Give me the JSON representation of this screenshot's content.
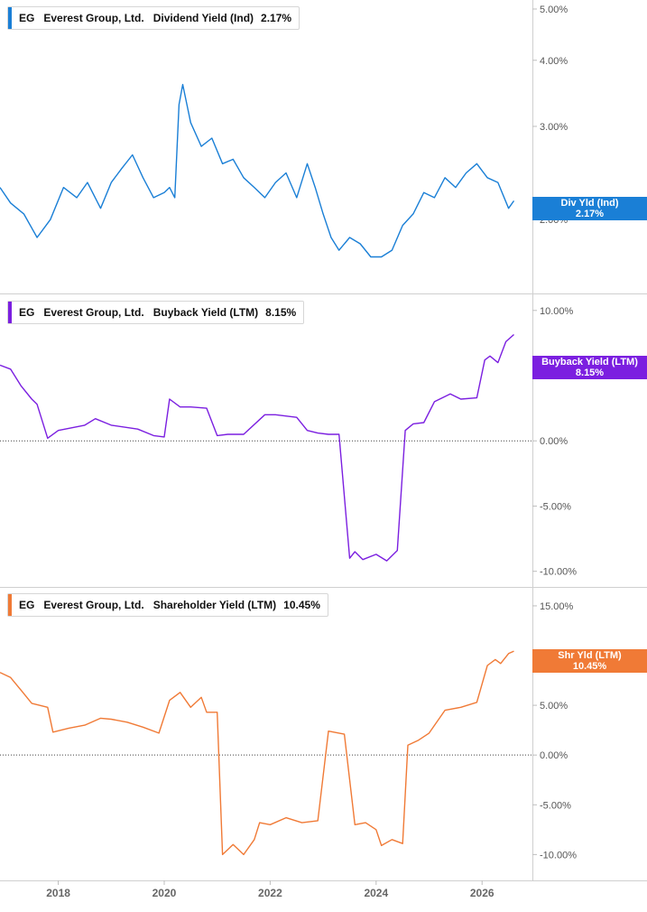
{
  "chart_data": [
    {
      "type": "line",
      "legend": {
        "ticker": "EG",
        "company": "Everest Group, Ltd.",
        "metric": "Dividend Yield (Ind)",
        "value": "2.17%"
      },
      "tag": {
        "label": "Div Yld (Ind)",
        "value": "2.17%"
      },
      "color": "#1a7fd6",
      "ytick_labels": [
        "5.00%",
        "4.00%",
        "3.00%",
        "2.00%"
      ],
      "yticks": [
        5,
        4,
        3,
        2
      ],
      "scale": "log",
      "ylim": [
        1.45,
        5.2
      ],
      "series": [
        {
          "x": [
            2016.9,
            2017.1,
            2017.35,
            2017.6,
            2017.85,
            2018.1,
            2018.35,
            2018.55,
            2018.8,
            2019.0,
            2019.2,
            2019.4,
            2019.6,
            2019.8,
            2020.0,
            2020.1,
            2020.2,
            2020.28,
            2020.35,
            2020.5,
            2020.7,
            2020.9,
            2021.1,
            2021.3,
            2021.5,
            2021.7,
            2021.9,
            2022.1,
            2022.3,
            2022.5,
            2022.7,
            2022.85,
            2023.0,
            2023.15,
            2023.3,
            2023.5,
            2023.7,
            2023.9,
            2024.1,
            2024.3,
            2024.5,
            2024.7,
            2024.9,
            2025.1,
            2025.3,
            2025.5,
            2025.7,
            2025.9,
            2026.1,
            2026.3,
            2026.5,
            2026.6
          ],
          "y": [
            2.3,
            2.15,
            2.05,
            1.85,
            2.0,
            2.3,
            2.2,
            2.35,
            2.1,
            2.35,
            2.5,
            2.65,
            2.4,
            2.2,
            2.25,
            2.3,
            2.2,
            3.3,
            3.6,
            3.05,
            2.75,
            2.85,
            2.55,
            2.6,
            2.4,
            2.3,
            2.2,
            2.35,
            2.45,
            2.2,
            2.55,
            2.3,
            2.05,
            1.85,
            1.75,
            1.85,
            1.8,
            1.7,
            1.7,
            1.75,
            1.95,
            2.05,
            2.25,
            2.2,
            2.4,
            2.3,
            2.45,
            2.55,
            2.4,
            2.35,
            2.1,
            2.17
          ]
        }
      ]
    },
    {
      "type": "line",
      "legend": {
        "ticker": "EG",
        "company": "Everest Group, Ltd.",
        "metric": "Buyback Yield (LTM)",
        "value": "8.15%"
      },
      "tag": {
        "label": "Buyback Yield (LTM)",
        "value": "8.15%"
      },
      "color": "#7b1fe0",
      "ytick_labels": [
        "10.00%",
        "5.00%",
        "0.00%",
        "-5.00%",
        "-10.00%"
      ],
      "yticks": [
        10,
        5,
        0,
        -5,
        -10
      ],
      "scale": "linear",
      "ylim": [
        -11.2,
        11.3
      ],
      "zero_line": true,
      "series": [
        {
          "x": [
            2016.9,
            2017.1,
            2017.3,
            2017.5,
            2017.6,
            2017.8,
            2018.0,
            2018.5,
            2018.7,
            2019.0,
            2019.5,
            2019.8,
            2020.0,
            2020.1,
            2020.3,
            2020.5,
            2020.8,
            2021.0,
            2021.2,
            2021.5,
            2021.9,
            2022.1,
            2022.5,
            2022.7,
            2022.9,
            2023.1,
            2023.3,
            2023.5,
            2023.6,
            2023.75,
            2024.0,
            2024.2,
            2024.4,
            2024.55,
            2024.7,
            2024.9,
            2025.1,
            2025.4,
            2025.6,
            2025.9,
            2026.05,
            2026.15,
            2026.3,
            2026.45,
            2026.6
          ],
          "y": [
            5.8,
            5.5,
            4.2,
            3.2,
            2.8,
            0.2,
            0.8,
            1.2,
            1.7,
            1.2,
            0.9,
            0.4,
            0.3,
            3.2,
            2.6,
            2.6,
            2.5,
            0.4,
            0.5,
            0.5,
            2.0,
            2.0,
            1.8,
            0.8,
            0.6,
            0.5,
            0.5,
            -9.0,
            -8.5,
            -9.1,
            -8.7,
            -9.2,
            -8.4,
            0.8,
            1.3,
            1.4,
            3.0,
            3.6,
            3.2,
            3.3,
            6.2,
            6.5,
            6.0,
            7.6,
            8.15
          ]
        }
      ]
    },
    {
      "type": "line",
      "legend": {
        "ticker": "EG",
        "company": "Everest Group, Ltd.",
        "metric": "Shareholder Yield (LTM)",
        "value": "10.45%"
      },
      "tag": {
        "label": "Shr Yld (LTM)",
        "value": "10.45%"
      },
      "color": "#f07a36",
      "ytick_labels": [
        "15.00%",
        "10.00%",
        "5.00%",
        "0.00%",
        "-5.00%",
        "-10.00%"
      ],
      "yticks": [
        15,
        10,
        5,
        0,
        -5,
        -10
      ],
      "scale": "linear",
      "ylim": [
        -12.6,
        16.9
      ],
      "zero_line": true,
      "series": [
        {
          "x": [
            2016.9,
            2017.1,
            2017.3,
            2017.5,
            2017.8,
            2017.9,
            2018.2,
            2018.5,
            2018.8,
            2019.0,
            2019.3,
            2019.6,
            2019.9,
            2020.1,
            2020.3,
            2020.5,
            2020.7,
            2020.8,
            2021.0,
            2021.1,
            2021.3,
            2021.5,
            2021.7,
            2021.8,
            2022.0,
            2022.3,
            2022.6,
            2022.9,
            2023.1,
            2023.2,
            2023.4,
            2023.6,
            2023.8,
            2024.0,
            2024.1,
            2024.3,
            2024.5,
            2024.6,
            2024.8,
            2025.0,
            2025.3,
            2025.6,
            2025.9,
            2026.1,
            2026.25,
            2026.35,
            2026.5,
            2026.6
          ],
          "y": [
            8.3,
            7.8,
            6.5,
            5.2,
            4.8,
            2.3,
            2.7,
            3.0,
            3.7,
            3.6,
            3.3,
            2.8,
            2.2,
            5.5,
            6.3,
            4.8,
            5.8,
            4.3,
            4.3,
            -10.0,
            -9.0,
            -10.0,
            -8.5,
            -6.8,
            -7.0,
            -6.3,
            -6.8,
            -6.6,
            2.4,
            2.3,
            2.1,
            -7.0,
            -6.8,
            -7.5,
            -9.1,
            -8.5,
            -8.9,
            1.0,
            1.5,
            2.2,
            4.5,
            4.8,
            5.3,
            9.0,
            9.6,
            9.2,
            10.2,
            10.45
          ]
        }
      ]
    }
  ],
  "x_axis": {
    "ticks": [
      2018,
      2020,
      2022,
      2024,
      2026
    ],
    "labels": [
      "2018",
      "2020",
      "2022",
      "2024",
      "2026"
    ],
    "xlim": [
      2016.9,
      2026.95
    ]
  }
}
